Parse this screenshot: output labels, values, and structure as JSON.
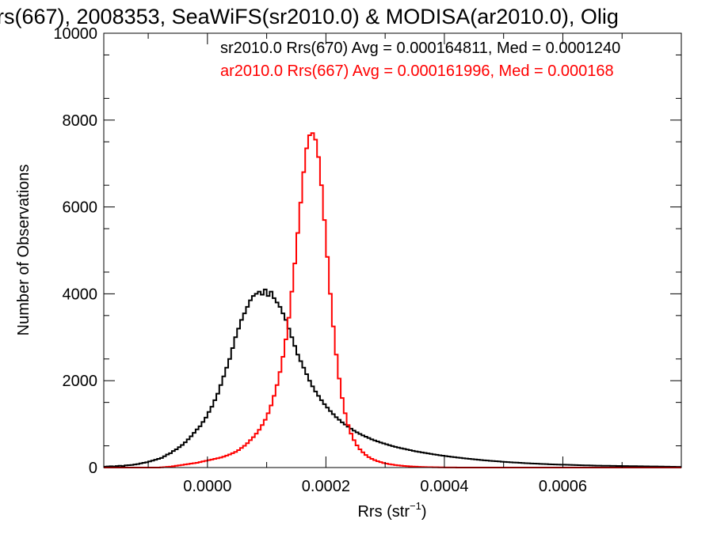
{
  "chart_data": {
    "type": "histogram",
    "title": "rs(667), 2008353, SeaWiFS(sr2010.0) & MODISA(ar2010.0), Olig",
    "xlabel": "Rrs (str",
    "xlabel_sup": "−1",
    "xlabel_suffix": ")",
    "ylabel": "Number of Observations",
    "xlim": [
      -0.000175,
      0.0008
    ],
    "ylim": [
      0,
      10000
    ],
    "y_ticks": [
      0,
      2000,
      4000,
      6000,
      8000,
      10000
    ],
    "y_tick_labels": [
      "0",
      "2000",
      "4000",
      "6000",
      "8000",
      "10000"
    ],
    "x_ticks": [
      0.0,
      0.0002,
      0.0004,
      0.0006
    ],
    "x_tick_labels": [
      "0.0000",
      "0.0002",
      "0.0004",
      "0.0006"
    ],
    "grid": false,
    "legend": "top-right",
    "bin_width": 5e-06,
    "x_start": -0.000175,
    "series": [
      {
        "name": "sr2010.0 Rrs(670) Avg = 0.000164811, Med = 0.0001240",
        "color": "#000000",
        "values": [
          20,
          25,
          30,
          25,
          35,
          40,
          35,
          50,
          55,
          60,
          70,
          80,
          95,
          110,
          120,
          140,
          160,
          180,
          200,
          220,
          260,
          300,
          330,
          380,
          420,
          470,
          520,
          580,
          650,
          720,
          800,
          880,
          950,
          1050,
          1150,
          1280,
          1400,
          1550,
          1700,
          1900,
          2100,
          2300,
          2500,
          2750,
          3000,
          3200,
          3400,
          3550,
          3700,
          3850,
          3950,
          4000,
          4050,
          3980,
          4100,
          3950,
          4050,
          3900,
          3800,
          3700,
          3550,
          3400,
          3200,
          3000,
          2800,
          2600,
          2450,
          2300,
          2150,
          2000,
          1870,
          1750,
          1650,
          1550,
          1460,
          1380,
          1300,
          1230,
          1160,
          1100,
          1040,
          990,
          940,
          895,
          850,
          810,
          775,
          740,
          710,
          680,
          650,
          625,
          600,
          575,
          555,
          535,
          515,
          495,
          475,
          460,
          445,
          430,
          415,
          400,
          385,
          372,
          360,
          348,
          336,
          325,
          314,
          303,
          293,
          283,
          273,
          264,
          255,
          246,
          238,
          230,
          222,
          214,
          207,
          200,
          193,
          186,
          179,
          173,
          167,
          161,
          155,
          150,
          145,
          140,
          135,
          130,
          125,
          121,
          117,
          113,
          109,
          105,
          101,
          97,
          94,
          91,
          88,
          85,
          82,
          79,
          76,
          73,
          71,
          69,
          67,
          65,
          63,
          61,
          59,
          57,
          55,
          53,
          51,
          49,
          47,
          45,
          44,
          43,
          42,
          41,
          40,
          39,
          38,
          37,
          36,
          35,
          34,
          33,
          32,
          31,
          30,
          29,
          28,
          27,
          26,
          25,
          24,
          23,
          22,
          21,
          20,
          19,
          18,
          17,
          16,
          15,
          14,
          13,
          12,
          11,
          10,
          9,
          8
        ]
      },
      {
        "name": "ar2010.0 Rrs(667) Avg = 0.000161996, Med = 0.000168",
        "color": "#ff0000",
        "values": [
          0,
          0,
          0,
          0,
          0,
          0,
          0,
          0,
          0,
          0,
          0,
          0,
          0,
          0,
          0,
          0,
          0,
          0,
          0,
          5,
          10,
          15,
          20,
          30,
          40,
          50,
          60,
          70,
          80,
          90,
          100,
          110,
          125,
          140,
          155,
          170,
          185,
          200,
          215,
          230,
          250,
          275,
          300,
          330,
          360,
          400,
          450,
          500,
          560,
          630,
          700,
          780,
          870,
          980,
          1100,
          1250,
          1430,
          1650,
          1900,
          2200,
          2550,
          2950,
          3450,
          4050,
          4700,
          5400,
          6100,
          6800,
          7350,
          7650,
          7700,
          7550,
          7150,
          6500,
          5700,
          4850,
          4000,
          3250,
          2600,
          2050,
          1600,
          1250,
          980,
          780,
          630,
          510,
          420,
          350,
          290,
          240,
          200,
          170,
          145,
          125,
          105,
          90,
          78,
          68,
          58,
          50,
          43,
          37,
          32,
          27,
          23,
          20,
          17,
          14,
          12,
          10,
          8,
          7,
          6,
          5,
          4,
          3,
          3,
          2,
          2,
          1,
          1,
          1,
          0,
          0,
          0,
          0,
          0,
          0,
          0,
          0,
          0,
          0,
          0,
          0,
          0,
          0,
          0,
          0,
          0,
          0,
          0,
          0,
          0,
          0,
          0,
          0,
          0,
          0,
          0,
          0,
          0,
          0,
          0,
          0,
          0,
          0,
          0,
          0,
          0,
          0,
          0,
          0,
          0,
          0,
          0,
          0,
          0,
          0,
          0,
          0,
          0,
          0,
          0,
          0,
          0,
          0,
          0,
          0,
          0,
          0,
          0,
          0,
          0,
          0,
          0,
          0,
          0,
          0,
          0,
          0,
          0,
          0,
          0,
          0,
          0,
          0,
          0,
          0,
          0,
          0,
          0,
          0,
          0,
          0,
          0,
          0,
          0,
          0,
          0
        ]
      }
    ]
  }
}
